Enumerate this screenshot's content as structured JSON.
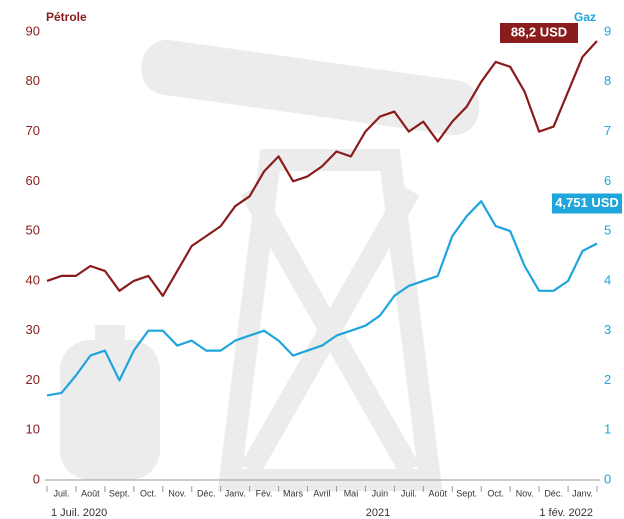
{
  "chart_data": {
    "type": "line",
    "y_label": "Pétrole",
    "y2_label": "Gaz",
    "categories": [
      null,
      "Juil.",
      null,
      "Août",
      null,
      "Sept.",
      null,
      "Oct.",
      null,
      "Nov.",
      null,
      "Déc.",
      null,
      "Janv.",
      null,
      "Fév.",
      null,
      "Mars",
      null,
      "Avril",
      null,
      "Mai",
      null,
      "Juin",
      null,
      "Juil.",
      null,
      "Août",
      null,
      "Sept.",
      null,
      "Oct.",
      null,
      "Nov.",
      null,
      "Déc.",
      null,
      "Janv.",
      null
    ],
    "period_labels": [
      "1 Juil. 2020",
      "2021",
      "1 fév. 2022"
    ],
    "series": [
      {
        "name": "Pétrole",
        "color": "#8b1c1c",
        "values": [
          40,
          41,
          41,
          43,
          42,
          38,
          40,
          41,
          37,
          42,
          47,
          49,
          51,
          55,
          57,
          62,
          65,
          60,
          61,
          63,
          66,
          65,
          70,
          73,
          74,
          70,
          72,
          68,
          72,
          75,
          80,
          84,
          83,
          78,
          70,
          71,
          78,
          85,
          88.2
        ]
      },
      {
        "name": "Gaz",
        "color": "#1ea5dc",
        "axis": "y2",
        "values": [
          1.7,
          1.75,
          2.1,
          2.5,
          2.6,
          2.0,
          2.6,
          3.0,
          3.0,
          2.7,
          2.8,
          2.6,
          2.6,
          2.8,
          2.9,
          3.0,
          2.8,
          2.5,
          2.6,
          2.7,
          2.9,
          3.0,
          3.1,
          3.3,
          3.7,
          3.9,
          4.0,
          4.1,
          4.9,
          5.3,
          5.6,
          5.1,
          5.0,
          4.3,
          3.8,
          3.8,
          4.0,
          4.6,
          4.751
        ]
      }
    ],
    "annotations": [
      {
        "text": "88,2 USD",
        "series": 0
      },
      {
        "text": "4,751 USD",
        "series": 1
      }
    ],
    "ylim": [
      0,
      90
    ],
    "yticks": [
      0,
      10,
      20,
      30,
      40,
      50,
      60,
      70,
      80,
      90
    ],
    "y2lim": [
      0,
      9
    ],
    "y2ticks": [
      0,
      1,
      2,
      3,
      4,
      5,
      6,
      7,
      8,
      9
    ]
  }
}
